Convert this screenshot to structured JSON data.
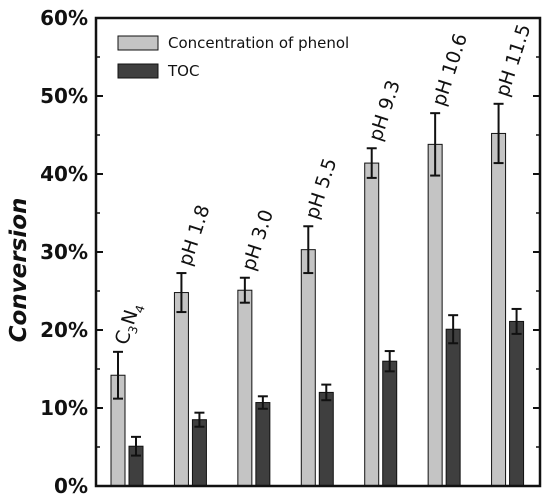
{
  "chart_data": {
    "type": "bar",
    "title": "",
    "xlabel": "",
    "ylabel": "Conversion",
    "ylim": [
      0,
      60
    ],
    "ytick_step": 10,
    "ytick_suffix": "%",
    "grid": false,
    "legend_position": "top-left",
    "categories": [
      "C3N4",
      "pH 1.8",
      "pH 3.0",
      "pH 5.5",
      "pH 9.3",
      "pH 10.6",
      "pH 11.5"
    ],
    "category_labels": [
      {
        "main": "C",
        "subs": [
          "3",
          "4"
        ],
        "mid": "N"
      },
      {
        "text": "pH 1.8"
      },
      {
        "text": "pH 3.0"
      },
      {
        "text": "pH 5.5"
      },
      {
        "text": "pH 9.3"
      },
      {
        "text": "pH 10.6"
      },
      {
        "text": "pH 11.5"
      }
    ],
    "series": [
      {
        "name": "Concentration of phenol",
        "color": "#c4c4c4",
        "values": [
          14.2,
          24.8,
          25.1,
          30.3,
          41.4,
          43.8,
          45.2
        ],
        "errors": [
          3.0,
          2.5,
          1.6,
          3.0,
          1.9,
          4.0,
          3.8
        ]
      },
      {
        "name": "TOC",
        "color": "#3f3f3f",
        "values": [
          5.1,
          8.5,
          10.7,
          12.0,
          16.0,
          20.1,
          21.1
        ],
        "errors": [
          1.2,
          0.9,
          0.8,
          1.0,
          1.3,
          1.8,
          1.6
        ]
      }
    ]
  }
}
